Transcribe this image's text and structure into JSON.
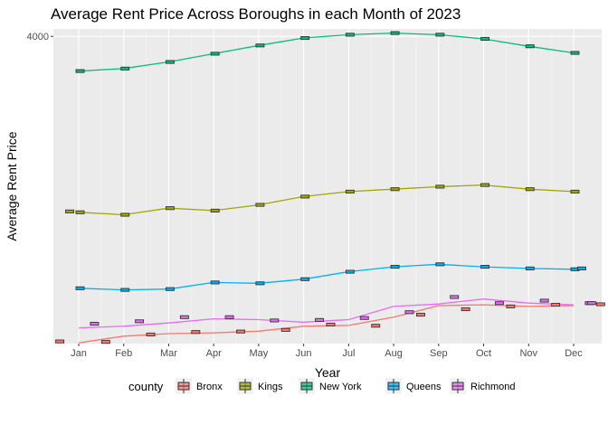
{
  "chart_data": {
    "type": "line",
    "title": "Average Rent Price Across Boroughs in each Month of 2023",
    "xlabel": "Year",
    "ylabel": "Average Rent Price",
    "categories": [
      "Jan",
      "Feb",
      "Mar",
      "Apr",
      "May",
      "Jun",
      "Jul",
      "Aug",
      "Sep",
      "Oct",
      "Nov",
      "Dec"
    ],
    "yticks": [
      4000
    ],
    "ylim": [
      2140,
      4045
    ],
    "grid": true,
    "legend": {
      "title": "county",
      "position": "bottom"
    },
    "series": [
      {
        "name": "Bronx",
        "color": "#F8766D",
        "values": [
          2145,
          2185,
          2200,
          2205,
          2215,
          2245,
          2250,
          2300,
          2370,
          2375,
          2365,
          2370
        ],
        "box_points": [
          [
            0.6,
            2150
          ],
          [
            1.6,
            2195
          ],
          [
            2.6,
            2210
          ],
          [
            3.6,
            2213
          ],
          [
            4.6,
            2223
          ],
          [
            5.6,
            2255
          ],
          [
            6.6,
            2248
          ],
          [
            7.6,
            2315
          ],
          [
            8.6,
            2348
          ],
          [
            9.6,
            2365
          ],
          [
            10.6,
            2375
          ],
          [
            11.6,
            2378
          ]
        ]
      },
      {
        "name": "Kings",
        "color": "#A3A500",
        "values": [
          2935,
          2920,
          2960,
          2945,
          2980,
          3030,
          3060,
          3075,
          3090,
          3100,
          3075,
          3060
        ]
      },
      {
        "name": "New York",
        "color": "#00BF7D",
        "values": [
          3790,
          3805,
          3845,
          3895,
          3945,
          3990,
          4010,
          4020,
          4010,
          3985,
          3940,
          3900
        ]
      },
      {
        "name": "Queens",
        "color": "#00B0F6",
        "values": [
          2475,
          2465,
          2470,
          2510,
          2505,
          2530,
          2575,
          2605,
          2620,
          2605,
          2595,
          2590
        ]
      },
      {
        "name": "Richmond",
        "color": "#E76BF3",
        "values": [
          2235,
          2245,
          2265,
          2290,
          2285,
          2270,
          2285,
          2365,
          2380,
          2410,
          2385,
          2375
        ],
        "box_points": [
          [
            0.35,
            2260
          ],
          [
            1.35,
            2275
          ],
          [
            2.35,
            2300
          ],
          [
            3.35,
            2300
          ],
          [
            4.35,
            2280
          ],
          [
            5.35,
            2283
          ],
          [
            6.35,
            2295
          ],
          [
            7.35,
            2330
          ],
          [
            8.35,
            2422
          ],
          [
            9.35,
            2385
          ],
          [
            10.35,
            2400
          ],
          [
            11.35,
            2385
          ]
        ]
      }
    ]
  }
}
